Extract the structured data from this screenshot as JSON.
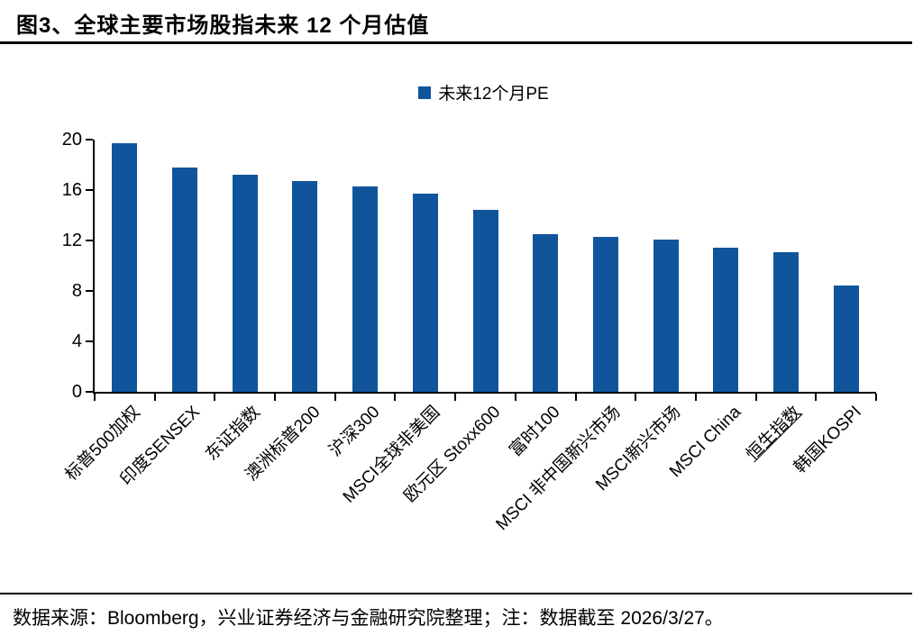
{
  "title": "图3、全球主要市场股指未来 12 个月估值",
  "legend": {
    "marker_color": "#10559C",
    "label": "未来12个月PE"
  },
  "footer": "数据来源：Bloomberg，兴业证券经济与金融研究院整理；注：数据截至 2026/3/27。",
  "colors": {
    "bar": "#10559C",
    "axis": "#000000"
  },
  "chart_data": {
    "type": "bar",
    "title": "图3、全球主要市场股指未来 12 个月估值",
    "legend_entries": [
      "未来12个月PE"
    ],
    "legend_position": "top-center",
    "categories": [
      "标普500加权",
      "印度SENSEX",
      "东证指数",
      "澳洲标普200",
      "沪深300",
      "MSCI全球非美国",
      "欧元区 Stoxx600",
      "富时100",
      "MSCI 非中国新兴市场",
      "MSCI新兴市场",
      "MSCI China",
      "恒生指数",
      "韩国KOSPI"
    ],
    "values": [
      19.7,
      17.8,
      17.2,
      16.7,
      16.3,
      15.7,
      14.4,
      12.5,
      12.3,
      12.1,
      11.4,
      11.1,
      8.4
    ],
    "underlined_category": "恒生指数",
    "xlabel": "",
    "ylabel": "",
    "ylim": [
      0,
      20
    ],
    "yticks": [
      0,
      4,
      8,
      12,
      16,
      20
    ],
    "grid": false
  }
}
